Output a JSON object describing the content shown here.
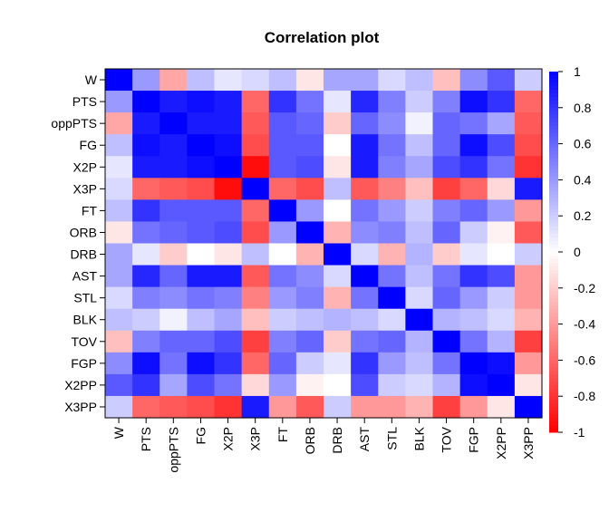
{
  "chart_data": {
    "type": "heatmap",
    "title": "Correlation plot",
    "xlabel": "",
    "ylabel": "",
    "variables": [
      "W",
      "PTS",
      "oppPTS",
      "FG",
      "X2P",
      "X3P",
      "FT",
      "ORB",
      "DRB",
      "AST",
      "STL",
      "BLK",
      "TOV",
      "FGP",
      "X2PP",
      "X3PP"
    ],
    "matrix": [
      [
        1.0,
        0.4,
        -0.35,
        0.25,
        0.1,
        0.15,
        0.25,
        -0.1,
        0.35,
        0.35,
        0.15,
        0.25,
        -0.25,
        0.45,
        0.65,
        0.2
      ],
      [
        0.4,
        1.0,
        0.9,
        0.95,
        0.9,
        -0.6,
        0.8,
        0.55,
        0.1,
        0.85,
        0.5,
        0.2,
        0.5,
        0.95,
        0.8,
        -0.6
      ],
      [
        -0.35,
        0.9,
        1.0,
        0.9,
        0.9,
        -0.65,
        0.65,
        0.6,
        -0.2,
        0.6,
        0.45,
        0.05,
        0.6,
        0.55,
        0.35,
        -0.65
      ],
      [
        0.25,
        0.95,
        0.9,
        1.0,
        0.95,
        -0.7,
        0.65,
        0.65,
        0.0,
        0.9,
        0.55,
        0.25,
        0.6,
        0.95,
        0.7,
        -0.7
      ],
      [
        0.1,
        0.9,
        0.9,
        0.95,
        1.0,
        -0.95,
        0.65,
        0.7,
        -0.1,
        0.9,
        0.5,
        0.35,
        0.7,
        0.8,
        0.55,
        -0.8
      ],
      [
        0.15,
        -0.6,
        -0.65,
        -0.7,
        -0.95,
        1.0,
        -0.6,
        -0.7,
        0.25,
        -0.65,
        -0.5,
        -0.25,
        -0.75,
        -0.6,
        -0.15,
        0.9
      ],
      [
        0.25,
        0.8,
        0.65,
        0.65,
        0.65,
        -0.6,
        1.0,
        0.4,
        0.0,
        0.55,
        0.4,
        0.2,
        0.5,
        0.6,
        0.4,
        -0.4
      ],
      [
        -0.1,
        0.55,
        0.6,
        0.65,
        0.7,
        -0.7,
        0.4,
        1.0,
        -0.3,
        0.45,
        0.5,
        0.25,
        0.6,
        0.2,
        -0.05,
        -0.65
      ],
      [
        0.35,
        0.1,
        -0.2,
        0.0,
        -0.1,
        0.25,
        0.0,
        -0.3,
        1.0,
        0.15,
        -0.3,
        0.3,
        -0.2,
        0.1,
        0.0,
        0.2
      ],
      [
        0.35,
        0.85,
        0.6,
        0.9,
        0.9,
        -0.65,
        0.55,
        0.45,
        0.15,
        1.0,
        0.55,
        0.25,
        0.55,
        0.8,
        0.7,
        -0.4
      ],
      [
        0.15,
        0.5,
        0.45,
        0.55,
        0.5,
        -0.5,
        0.4,
        0.5,
        -0.3,
        0.55,
        1.0,
        0.15,
        0.6,
        0.4,
        0.2,
        -0.4
      ],
      [
        0.25,
        0.2,
        0.05,
        0.25,
        0.35,
        -0.25,
        0.2,
        0.25,
        0.3,
        0.25,
        0.15,
        1.0,
        0.3,
        0.25,
        0.15,
        -0.3
      ],
      [
        -0.25,
        0.5,
        0.6,
        0.6,
        0.7,
        -0.75,
        0.5,
        0.6,
        -0.2,
        0.55,
        0.6,
        0.3,
        1.0,
        0.55,
        0.3,
        -0.75
      ],
      [
        0.45,
        0.95,
        0.55,
        0.95,
        0.8,
        -0.6,
        0.6,
        0.2,
        0.1,
        0.8,
        0.4,
        0.25,
        0.55,
        1.0,
        0.95,
        -0.4
      ],
      [
        0.65,
        0.8,
        0.35,
        0.7,
        0.55,
        -0.15,
        0.4,
        -0.05,
        0.0,
        0.7,
        0.2,
        0.15,
        0.3,
        0.95,
        1.0,
        -0.1
      ],
      [
        0.2,
        -0.6,
        -0.65,
        -0.7,
        -0.8,
        0.9,
        -0.4,
        -0.65,
        0.2,
        -0.4,
        -0.4,
        -0.3,
        -0.75,
        -0.4,
        -0.1,
        1.0
      ]
    ],
    "colorbar": {
      "range": [
        -1,
        1
      ],
      "ticks": [
        1,
        0.8,
        0.6,
        0.4,
        0.2,
        0,
        -0.2,
        -0.4,
        -0.6,
        -0.8,
        -1
      ],
      "tick_labels": [
        "1",
        "0.8",
        "0.6",
        "0.4",
        "0.2",
        "0",
        "-0.2",
        "-0.4",
        "-0.6",
        "-0.8",
        "-1"
      ],
      "high_color": "#0000ff",
      "mid_color": "#ffffff",
      "low_color": "#ff0000"
    },
    "legend": "right"
  }
}
